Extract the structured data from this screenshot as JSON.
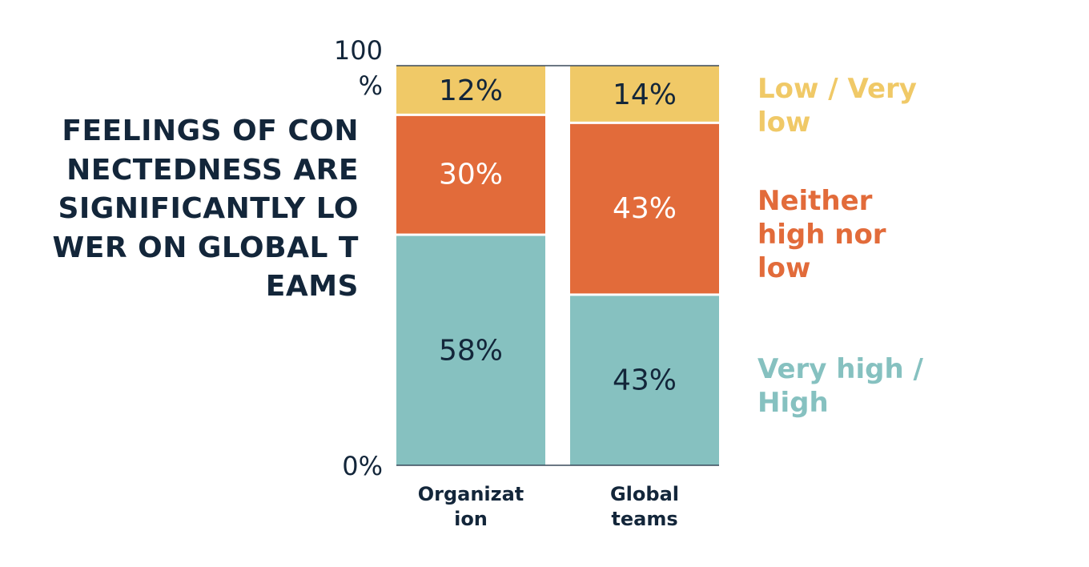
{
  "chart_data": {
    "type": "bar",
    "stacked": true,
    "title": "FEELINGS OF CONNECTEDNESS ARE SIGNIFICANTLY LOWER ON GLOBAL TEAMS",
    "categories": [
      "Organization",
      "Global teams"
    ],
    "series": [
      {
        "name": "Very high / High",
        "values": [
          58,
          43
        ],
        "labels": [
          "58%",
          "43%"
        ],
        "color": "#86c1c0",
        "label_color": "#13263a"
      },
      {
        "name": "Neither high nor low",
        "values": [
          30,
          43
        ],
        "labels": [
          "30%",
          "43%"
        ],
        "color": "#e26b3a",
        "label_color": "#ffffff"
      },
      {
        "name": "Low / Very low",
        "values": [
          12,
          14
        ],
        "labels": [
          "12%",
          "14%"
        ],
        "color": "#f0c967",
        "label_color": "#13263a"
      }
    ],
    "yticks": [
      "0%",
      "100%"
    ],
    "ylim": [
      0,
      100
    ],
    "grid": false,
    "legend_placement": "right",
    "text_color": "#13263a"
  }
}
